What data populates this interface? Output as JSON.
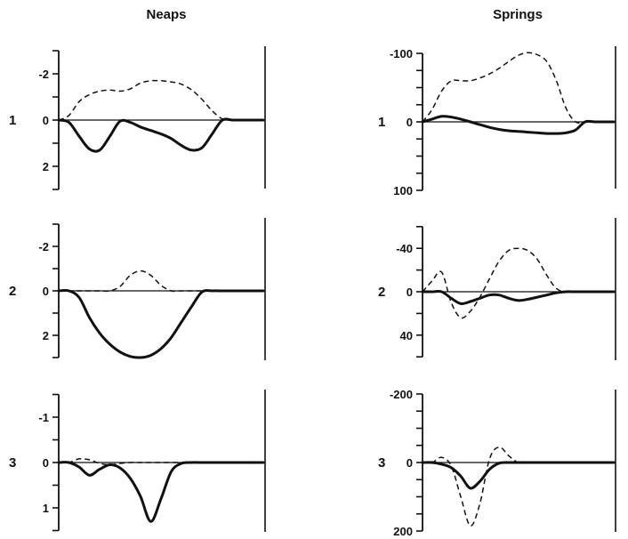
{
  "columns": [
    "Neaps",
    "Springs"
  ],
  "chart_data": [
    {
      "type": "line",
      "column": "Neaps",
      "row_label": "1",
      "ylim": [
        3,
        -3
      ],
      "tick_step": 1,
      "tick_labels": [
        {
          "v": -2,
          "t": "-2"
        },
        {
          "v": 0,
          "t": "0"
        },
        {
          "v": 2,
          "t": "2"
        }
      ],
      "x": [
        0,
        5,
        10,
        15,
        20,
        25,
        30,
        35,
        40,
        45,
        50,
        55,
        60,
        65,
        70,
        75,
        80,
        85,
        90,
        95,
        100
      ],
      "series": [
        {
          "style": "solid",
          "values": [
            0,
            0.1,
            0.7,
            1.25,
            1.3,
            0.7,
            0.05,
            0.1,
            0.3,
            0.45,
            0.6,
            0.8,
            1.1,
            1.3,
            1.2,
            0.6,
            0,
            0,
            0,
            0,
            0
          ]
        },
        {
          "style": "dashed",
          "values": [
            0,
            -0.2,
            -0.8,
            -1.1,
            -1.25,
            -1.3,
            -1.25,
            -1.35,
            -1.6,
            -1.7,
            -1.7,
            -1.65,
            -1.55,
            -1.3,
            -0.9,
            -0.4,
            -0.05,
            0,
            0,
            0,
            0
          ]
        }
      ]
    },
    {
      "type": "line",
      "column": "Springs",
      "row_label": "1",
      "ylim": [
        100,
        -100
      ],
      "tick_step": 25,
      "tick_labels": [
        {
          "v": -100,
          "t": "-100"
        },
        {
          "v": 0,
          "t": "0"
        },
        {
          "v": 100,
          "t": "100"
        }
      ],
      "x": [
        0,
        5,
        10,
        15,
        20,
        25,
        30,
        35,
        40,
        45,
        50,
        55,
        60,
        65,
        70,
        75,
        80,
        85,
        90,
        95,
        100
      ],
      "series": [
        {
          "style": "solid",
          "values": [
            0,
            -4,
            -8,
            -7,
            -4,
            0,
            4,
            8,
            11,
            13,
            14,
            15,
            16,
            17,
            17,
            16,
            12,
            0,
            0,
            0,
            0
          ]
        },
        {
          "style": "dashed",
          "values": [
            0,
            -18,
            -45,
            -60,
            -60,
            -60,
            -64,
            -70,
            -78,
            -88,
            -97,
            -101,
            -98,
            -88,
            -60,
            -20,
            0,
            0,
            0,
            0,
            0
          ]
        }
      ]
    },
    {
      "type": "line",
      "column": "Neaps",
      "row_label": "2",
      "ylim": [
        3,
        -3
      ],
      "tick_step": 1,
      "tick_labels": [
        {
          "v": -2,
          "t": "-2"
        },
        {
          "v": 0,
          "t": "0"
        },
        {
          "v": 2,
          "t": "2"
        }
      ],
      "x": [
        0,
        5,
        10,
        15,
        20,
        25,
        30,
        35,
        40,
        45,
        50,
        55,
        60,
        65,
        70,
        75,
        80,
        85,
        90,
        95,
        100
      ],
      "series": [
        {
          "style": "solid",
          "values": [
            0,
            0,
            0.3,
            1.2,
            1.9,
            2.4,
            2.75,
            2.95,
            3.0,
            2.9,
            2.6,
            2.1,
            1.4,
            0.7,
            0.05,
            0,
            0,
            0,
            0,
            0,
            0
          ]
        },
        {
          "style": "dashed",
          "values": [
            0,
            0,
            0,
            0,
            0,
            0,
            -0.2,
            -0.7,
            -0.9,
            -0.7,
            -0.25,
            0,
            0,
            0,
            0,
            0,
            0,
            0,
            0,
            0,
            0
          ]
        }
      ]
    },
    {
      "type": "line",
      "column": "Springs",
      "row_label": "2",
      "ylim": [
        60,
        -60
      ],
      "tick_step": 20,
      "tick_labels": [
        {
          "v": -40,
          "t": "-40"
        },
        {
          "v": 0,
          "t": "0"
        },
        {
          "v": 40,
          "t": "40"
        }
      ],
      "x": [
        0,
        5,
        10,
        15,
        20,
        25,
        30,
        35,
        40,
        45,
        50,
        55,
        60,
        65,
        70,
        75,
        80,
        85,
        90,
        95,
        100
      ],
      "series": [
        {
          "style": "solid",
          "values": [
            0,
            0,
            0,
            6,
            11,
            9,
            6,
            3,
            3,
            6,
            8,
            7,
            5,
            3,
            1,
            0,
            0,
            0,
            0,
            0,
            0
          ]
        },
        {
          "style": "dashed",
          "values": [
            0,
            -10,
            -18,
            10,
            24,
            18,
            5,
            -12,
            -28,
            -38,
            -40,
            -38,
            -30,
            -15,
            -3,
            0,
            0,
            0,
            0,
            0,
            0
          ]
        }
      ]
    },
    {
      "type": "line",
      "column": "Neaps",
      "row_label": "3",
      "ylim": [
        1.5,
        -1.5
      ],
      "tick_step": 0.5,
      "tick_labels": [
        {
          "v": -1,
          "t": "-1"
        },
        {
          "v": 0,
          "t": "0"
        },
        {
          "v": 1,
          "t": "1"
        }
      ],
      "x": [
        0,
        5,
        10,
        15,
        20,
        25,
        30,
        35,
        40,
        45,
        50,
        55,
        60,
        65,
        70,
        75,
        80,
        85,
        90,
        95,
        100
      ],
      "series": [
        {
          "style": "solid",
          "values": [
            0,
            0,
            0.1,
            0.28,
            0.15,
            0.05,
            0.12,
            0.35,
            0.75,
            1.3,
            0.8,
            0.2,
            0.02,
            0,
            0,
            0,
            0,
            0,
            0,
            0,
            0
          ]
        },
        {
          "style": "dashed",
          "values": [
            0,
            0,
            -0.08,
            -0.06,
            0.02,
            0.05,
            0.02,
            0,
            0,
            0,
            0,
            0,
            0,
            0,
            0,
            0,
            0,
            0,
            0,
            0,
            0
          ]
        }
      ]
    },
    {
      "type": "line",
      "column": "Springs",
      "row_label": "3",
      "ylim": [
        200,
        -200
      ],
      "tick_step": 50,
      "tick_labels": [
        {
          "v": -200,
          "t": "-200"
        },
        {
          "v": 0,
          "t": "0"
        },
        {
          "v": 200,
          "t": "200"
        }
      ],
      "x": [
        0,
        5,
        10,
        15,
        20,
        25,
        30,
        35,
        40,
        45,
        50,
        55,
        60,
        65,
        70,
        75,
        80,
        85,
        90,
        95,
        100
      ],
      "series": [
        {
          "style": "solid",
          "values": [
            0,
            0,
            5,
            15,
            40,
            75,
            55,
            20,
            2,
            0,
            0,
            0,
            0,
            0,
            0,
            0,
            0,
            0,
            0,
            0,
            0
          ]
        },
        {
          "style": "dashed",
          "values": [
            0,
            0,
            -15,
            10,
            100,
            185,
            120,
            -10,
            -45,
            -20,
            0,
            0,
            0,
            0,
            0,
            0,
            0,
            0,
            0,
            0,
            0
          ]
        }
      ]
    }
  ]
}
